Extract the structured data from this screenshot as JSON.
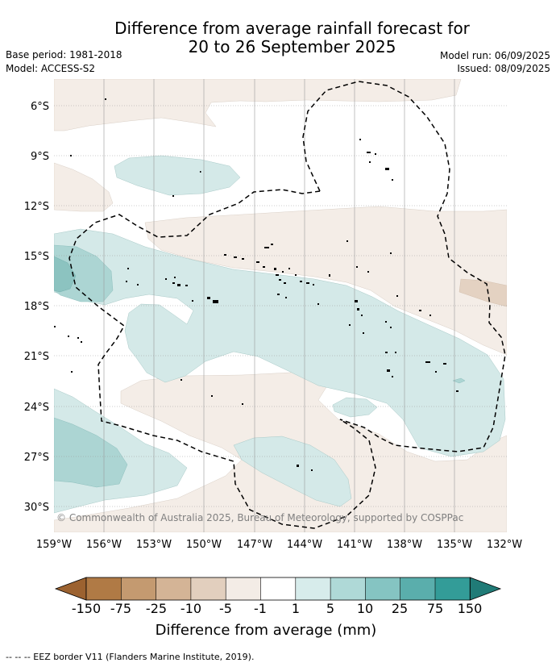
{
  "header": {
    "title_line1": "Difference from average rainfall forecast for",
    "title_line2": "20 to 26 September 2025",
    "base_period": "Base period: 1981-2018",
    "model": "Model: ACCESS-S2",
    "model_run": "Model run: 06/09/2025",
    "issued": "Issued: 08/09/2025"
  },
  "map": {
    "lat_labels": [
      "6°S",
      "9°S",
      "12°S",
      "15°S",
      "18°S",
      "21°S",
      "24°S",
      "27°S",
      "30°S"
    ],
    "lon_labels": [
      "159°W",
      "156°W",
      "153°W",
      "150°W",
      "147°W",
      "144°W",
      "141°W",
      "138°W",
      "135°W",
      "132°W"
    ],
    "copyright": "© Commonwealth of Australia 2025, Bureau of Meteorology, supported by COSPPac"
  },
  "legend": {
    "title": "Difference from average (mm)",
    "tick_labels": [
      "-150",
      "-75",
      "-25",
      "-10",
      "-5",
      "-1",
      "1",
      "5",
      "10",
      "25",
      "75",
      "150"
    ],
    "colors": [
      "#9c6230",
      "#b07a45",
      "#c49a70",
      "#d4b496",
      "#e2cfbe",
      "#f3ece6",
      "#ffffff",
      "#d7eceb",
      "#afd9d7",
      "#85c4c2",
      "#5aaeac",
      "#339c98",
      "#207b77"
    ],
    "eez_note": "--  --  -- EEZ border V11 (Flanders Marine Institute, 2019)."
  }
}
